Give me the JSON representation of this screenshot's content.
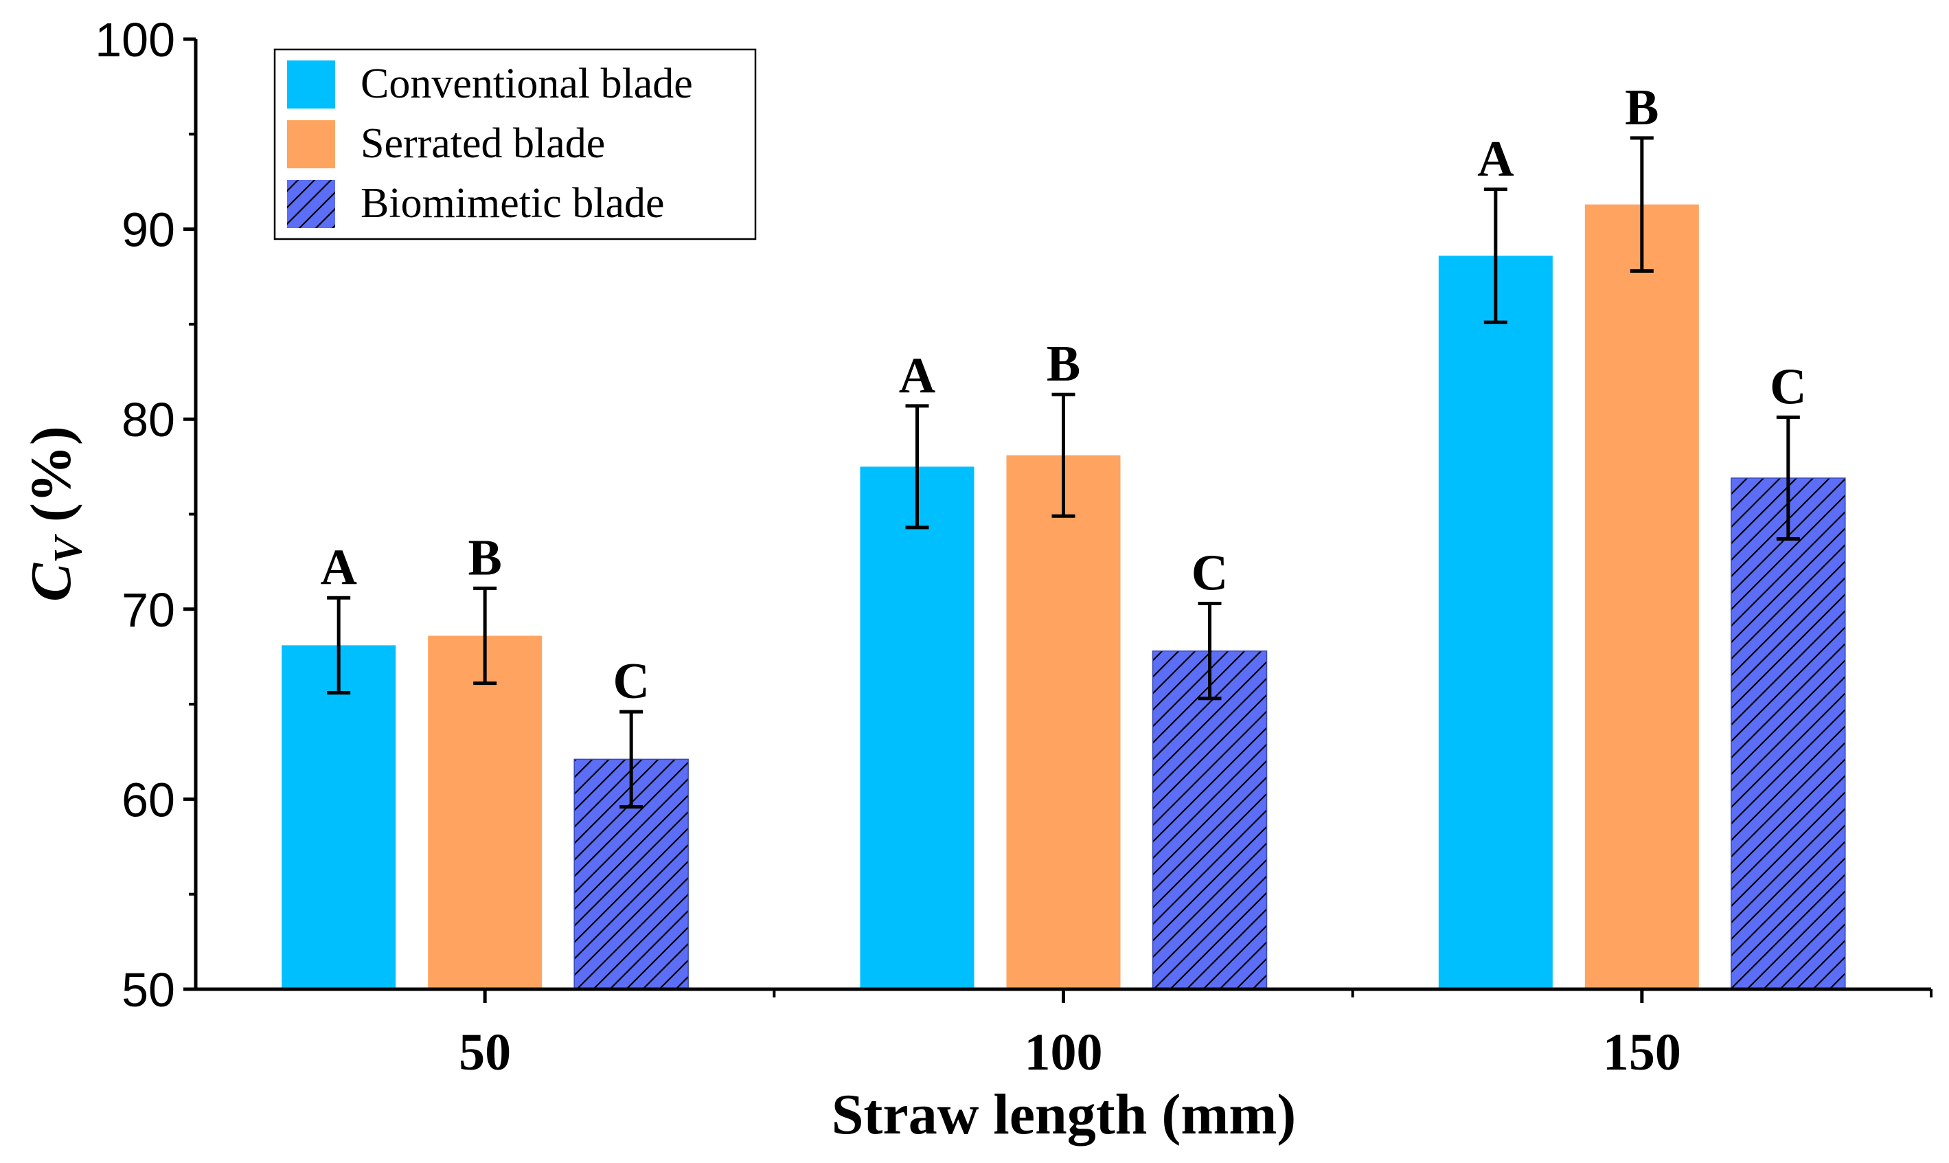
{
  "chart_data": {
    "type": "bar",
    "title": "",
    "xlabel": "Straw length (mm)",
    "ylabel_main": "C",
    "ylabel_sub": "V",
    "ylabel_suffix": " (%)",
    "categories": [
      "50",
      "100",
      "150"
    ],
    "ylim": [
      50,
      100
    ],
    "yticks": [
      "50",
      "60",
      "70",
      "80",
      "90",
      "100"
    ],
    "grid": false,
    "legend_position": "top-left",
    "series": [
      {
        "name": "Conventional blade",
        "color": "#00BFFF",
        "pattern": "solid",
        "values": [
          68.1,
          77.5,
          88.6
        ],
        "errors": [
          2.5,
          3.2,
          3.5
        ],
        "labels": [
          "A",
          "A",
          "A"
        ]
      },
      {
        "name": "Serrated blade",
        "color": "#FFA460",
        "pattern": "solid",
        "values": [
          68.6,
          78.1,
          91.3
        ],
        "errors": [
          2.5,
          3.2,
          3.5
        ],
        "labels": [
          "B",
          "B",
          "B"
        ]
      },
      {
        "name": "Biomimetic blade",
        "color": "#5B6EF5",
        "pattern": "hatch",
        "values": [
          62.1,
          67.8,
          76.9
        ],
        "errors": [
          2.5,
          2.5,
          3.2
        ],
        "labels": [
          "C",
          "C",
          "C"
        ]
      }
    ]
  }
}
